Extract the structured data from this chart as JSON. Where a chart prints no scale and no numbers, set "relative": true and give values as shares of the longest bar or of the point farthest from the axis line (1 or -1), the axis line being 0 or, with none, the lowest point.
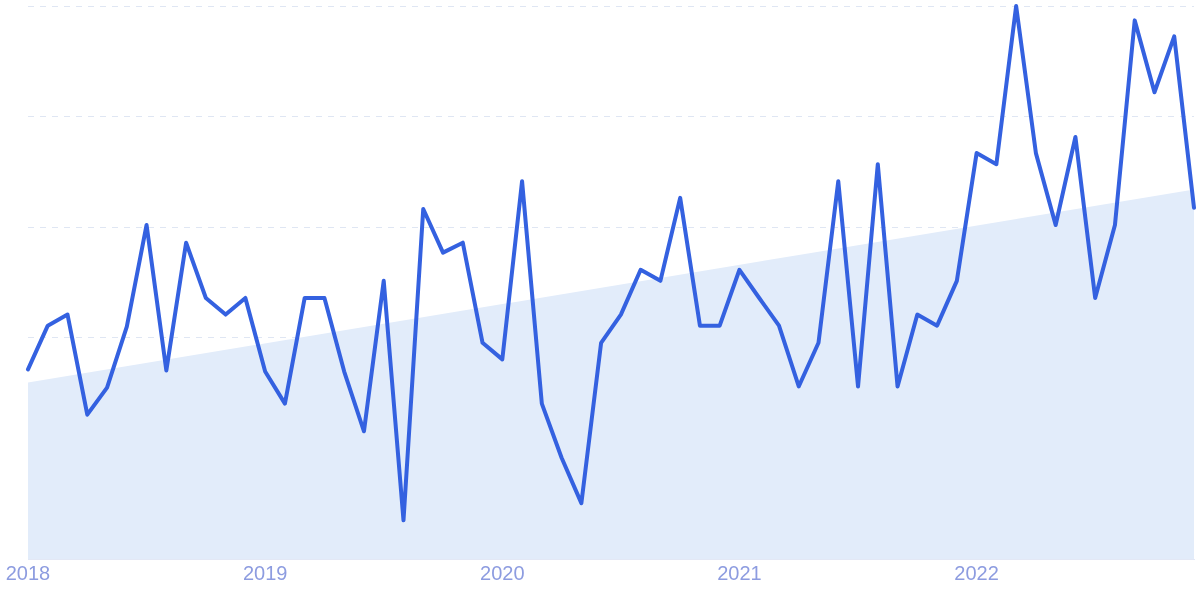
{
  "chart_data": {
    "type": "line",
    "relative": true,
    "grid": "y",
    "legend": false,
    "marker": "none",
    "line_style": "solid",
    "x": [
      "2018-01",
      "2018-02",
      "2018-03",
      "2018-04",
      "2018-05",
      "2018-06",
      "2018-07",
      "2018-08",
      "2018-09",
      "2018-10",
      "2018-11",
      "2018-12",
      "2019-01",
      "2019-02",
      "2019-03",
      "2019-04",
      "2019-05",
      "2019-06",
      "2019-07",
      "2019-08",
      "2019-09",
      "2019-10",
      "2019-11",
      "2019-12",
      "2020-01",
      "2020-02",
      "2020-03",
      "2020-04",
      "2020-05",
      "2020-06",
      "2020-07",
      "2020-08",
      "2020-09",
      "2020-10",
      "2020-11",
      "2020-12",
      "2021-01",
      "2021-02",
      "2021-03",
      "2021-04",
      "2021-05",
      "2021-06",
      "2021-07",
      "2021-08",
      "2021-09",
      "2021-10",
      "2021-11",
      "2021-12",
      "2022-01",
      "2022-02",
      "2022-03",
      "2022-04",
      "2022-05",
      "2022-06",
      "2022-07",
      "2022-08",
      "2022-09",
      "2022-10",
      "2022-11",
      "2022-12"
    ],
    "xlim": [
      "2018-01",
      "2022-12"
    ],
    "xticks": [
      "2018",
      "2019",
      "2020",
      "2021",
      "2022"
    ],
    "series": [
      {
        "type": "area",
        "color": "#e2ecfa",
        "x": [
          "2018-01",
          "2022-12"
        ],
        "values": [
          0.319,
          0.668
        ]
      },
      {
        "color": "#3461e0",
        "values": [
          0.343,
          0.422,
          0.442,
          0.261,
          0.31,
          0.42,
          0.604,
          0.341,
          0.572,
          0.472,
          0.442,
          0.472,
          0.339,
          0.281,
          0.472,
          0.472,
          0.339,
          0.231,
          0.503,
          0.07,
          0.633,
          0.554,
          0.572,
          0.391,
          0.361,
          0.683,
          0.281,
          0.183,
          0.101,
          0.391,
          0.442,
          0.523,
          0.503,
          0.653,
          0.422,
          0.422,
          0.523,
          0.472,
          0.422,
          0.312,
          0.391,
          0.683,
          0.312,
          0.714,
          0.312,
          0.442,
          0.422,
          0.503,
          0.734,
          0.714,
          1.0,
          0.734,
          0.604,
          0.763,
          0.472,
          0.604,
          0.974,
          0.844,
          0.945,
          0.635
        ]
      }
    ]
  }
}
